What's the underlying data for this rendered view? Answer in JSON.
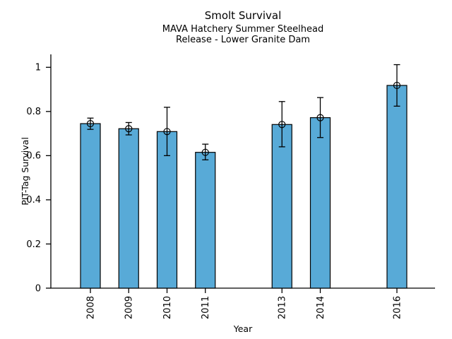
{
  "header": {
    "title": "Smolt Survival",
    "subtitle1": "MAVA Hatchery Summer Steelhead",
    "subtitle2": "Release - Lower Granite Dam"
  },
  "chart_data": {
    "type": "bar",
    "title": "Smolt Survival",
    "subtitle": [
      "MAVA Hatchery Summer Steelhead",
      "Release - Lower Granite Dam"
    ],
    "xlabel": "Year",
    "ylabel": "PIT-Tag Survival",
    "categories": [
      2008,
      2009,
      2010,
      2011,
      2013,
      2014,
      2016
    ],
    "values": [
      0.745,
      0.722,
      0.709,
      0.615,
      0.741,
      0.772,
      0.918
    ],
    "error_low": [
      0.719,
      0.694,
      0.6,
      0.581,
      0.64,
      0.682,
      0.824
    ],
    "error_high": [
      0.77,
      0.75,
      0.819,
      0.652,
      0.845,
      0.863,
      1.012
    ],
    "yticks": [
      0,
      0.2,
      0.4,
      0.6,
      0.8,
      1
    ],
    "ytick_labels": [
      "0",
      "0.2",
      "0.4",
      "0.6",
      "0.8",
      "1"
    ],
    "ylim": [
      0,
      1.06
    ],
    "xlim": [
      2007,
      2017
    ],
    "missing_years": [
      2012,
      2015
    ],
    "bar_color": "#58AAD7",
    "edge_color": "#000000",
    "error_color": "#000000",
    "marker": "open-circle",
    "grid": false,
    "legend": null
  }
}
